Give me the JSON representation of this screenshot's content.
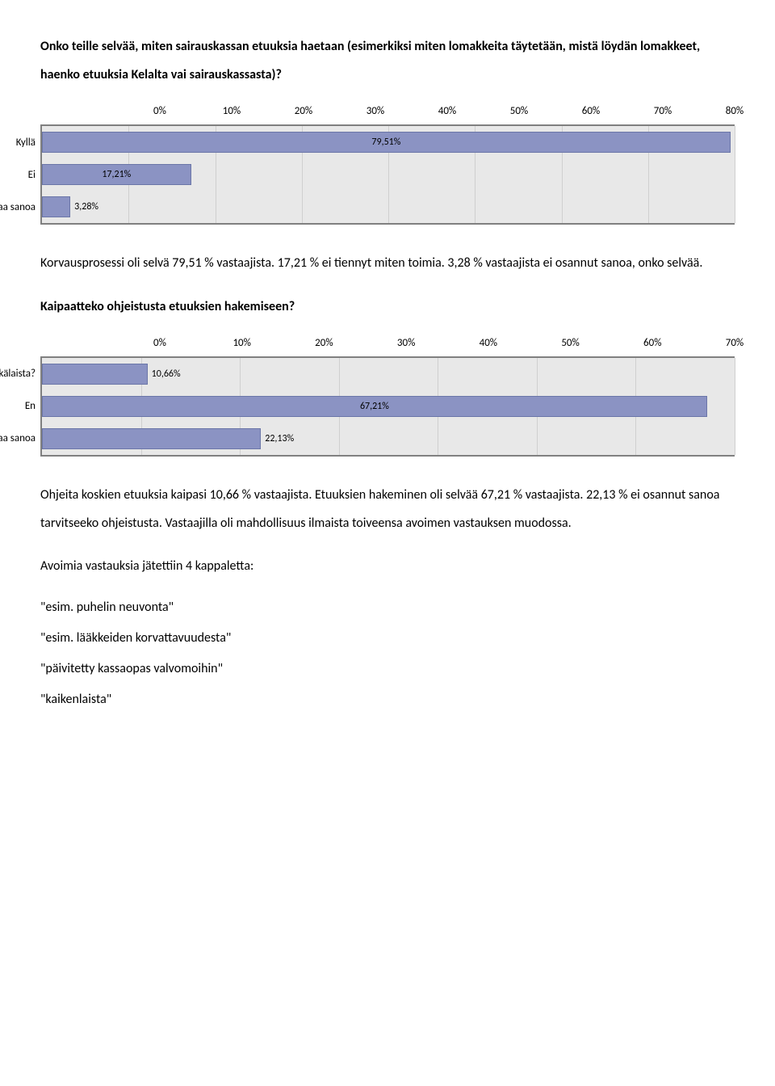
{
  "colors": {
    "bar_fill": "#8b93c3",
    "bar_border": "#6b76a8",
    "plot_bg": "#e8e8e8",
    "grid": "#cfcfcf",
    "axis": "#808080",
    "text": "#000000"
  },
  "q1": {
    "text": "Onko teille selvää, miten sairauskassan etuuksia haetaan (esimerkiksi miten lomakkeita täytetään, mistä löydän lomakkeet, haenko etuuksia Kelalta vai sairauskassasta)?"
  },
  "chart1": {
    "type": "bar",
    "x_max": 80,
    "tick_step": 10,
    "ticks": [
      "0%",
      "10%",
      "20%",
      "30%",
      "40%",
      "50%",
      "60%",
      "70%",
      "80%"
    ],
    "rows": [
      {
        "label": "Kyllä",
        "value": 79.51,
        "value_label": "79,51%",
        "label_inside": true
      },
      {
        "label": "Ei",
        "value": 17.21,
        "value_label": "17,21%",
        "label_inside": true
      },
      {
        "label": "En osaa sanoa",
        "value": 3.28,
        "value_label": "3,28%",
        "label_inside": false
      }
    ]
  },
  "p1": {
    "text": "Korvausprosessi oli selvä 79,51 % vastaajista. 17,21 % ei tiennyt miten toimia. 3,28 % vastaajista ei osannut sanoa, onko selvää."
  },
  "q2": {
    "text": "Kaipaatteko ohjeistusta etuuksien hakemiseen?"
  },
  "chart2": {
    "type": "bar",
    "x_max": 70,
    "tick_step": 10,
    "ticks": [
      "0%",
      "10%",
      "20%",
      "30%",
      "40%",
      "50%",
      "60%",
      "70%"
    ],
    "rows": [
      {
        "label": "Kyllä, minkälaista?",
        "value": 10.66,
        "value_label": "10,66%",
        "label_inside": false
      },
      {
        "label": "En",
        "value": 67.21,
        "value_label": "67,21%",
        "label_inside": true
      },
      {
        "label": "En osaa sanoa",
        "value": 22.13,
        "value_label": "22,13%",
        "label_inside": false
      }
    ]
  },
  "p2": {
    "text": "Ohjeita koskien etuuksia kaipasi 10,66 % vastaajista. Etuuksien hakeminen oli selvää 67,21 % vastaajista. 22,13 % ei osannut sanoa tarvitseeko ohjeistusta. Vastaajilla oli mahdollisuus ilmaista toiveensa avoimen vastauksen muodossa."
  },
  "p3": {
    "text": "Avoimia vastauksia jätettiin 4 kappaletta:"
  },
  "answers": [
    "\"esim. puhelin neuvonta\"",
    "\"esim. lääkkeiden korvattavuudesta\"",
    "\"päivitetty kassaopas valvomoihin\"",
    "\"kaikenlaista\""
  ]
}
